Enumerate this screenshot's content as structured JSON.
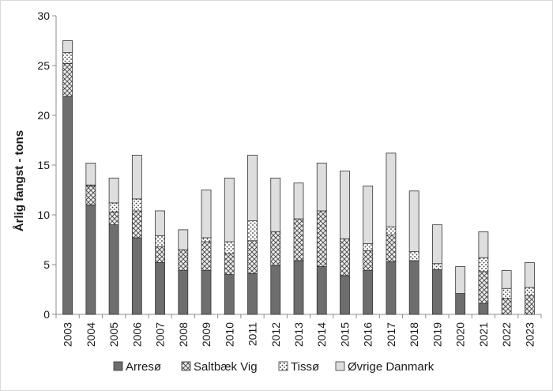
{
  "chart_data": {
    "type": "bar",
    "stacked": true,
    "title": "",
    "xlabel": "",
    "ylabel": "Årlig fangst - tons",
    "ylim": [
      0,
      30
    ],
    "yticks": [
      "0",
      "5",
      "10",
      "15",
      "20",
      "25",
      "30"
    ],
    "grid": false,
    "legend_position": "bottom",
    "categories": [
      "2003",
      "2004",
      "2005",
      "2006",
      "2007",
      "2008",
      "2009",
      "2010",
      "2011",
      "2012",
      "2013",
      "2014",
      "2015",
      "2016",
      "2017",
      "2018",
      "2019",
      "2020",
      "2021",
      "2022",
      "2023"
    ],
    "series": [
      {
        "name": "Arresø",
        "pattern": "solid-dark-gray",
        "values": [
          21.9,
          11.0,
          9.0,
          7.7,
          5.2,
          4.4,
          4.4,
          4.0,
          4.1,
          4.9,
          5.4,
          4.8,
          3.9,
          4.4,
          5.3,
          5.4,
          4.5,
          2.1,
          1.1,
          0.0,
          0.0
        ]
      },
      {
        "name": "Saltbæk Vig",
        "pattern": "crosshatch",
        "values": [
          3.3,
          1.9,
          1.3,
          2.7,
          1.6,
          2.1,
          2.9,
          2.1,
          3.3,
          3.4,
          4.2,
          5.6,
          3.7,
          2.0,
          2.7,
          0.0,
          0.0,
          0.0,
          3.2,
          1.6,
          1.9
        ]
      },
      {
        "name": "Tissø",
        "pattern": "dotted",
        "values": [
          1.1,
          0.1,
          0.9,
          1.2,
          1.1,
          0.0,
          0.4,
          1.2,
          2.0,
          0.0,
          0.0,
          0.0,
          0.0,
          0.7,
          0.8,
          0.9,
          0.6,
          0.0,
          1.4,
          1.0,
          0.8
        ]
      },
      {
        "name": "Øvrige Danmark",
        "pattern": "solid-light-gray",
        "values": [
          1.2,
          2.2,
          2.5,
          4.4,
          2.5,
          2.0,
          4.8,
          6.4,
          6.6,
          5.4,
          3.6,
          4.8,
          6.8,
          5.8,
          7.4,
          6.1,
          3.9,
          2.7,
          2.6,
          1.8,
          2.5
        ]
      }
    ],
    "colors": {
      "arreso": "#6e6e6e",
      "saltbaek_fill": "#e6e6e6",
      "tisso_fill": "#ffffff",
      "ovrige": "#dedede",
      "bar_outline": "#333333",
      "axis": "#8c8c8c"
    }
  }
}
